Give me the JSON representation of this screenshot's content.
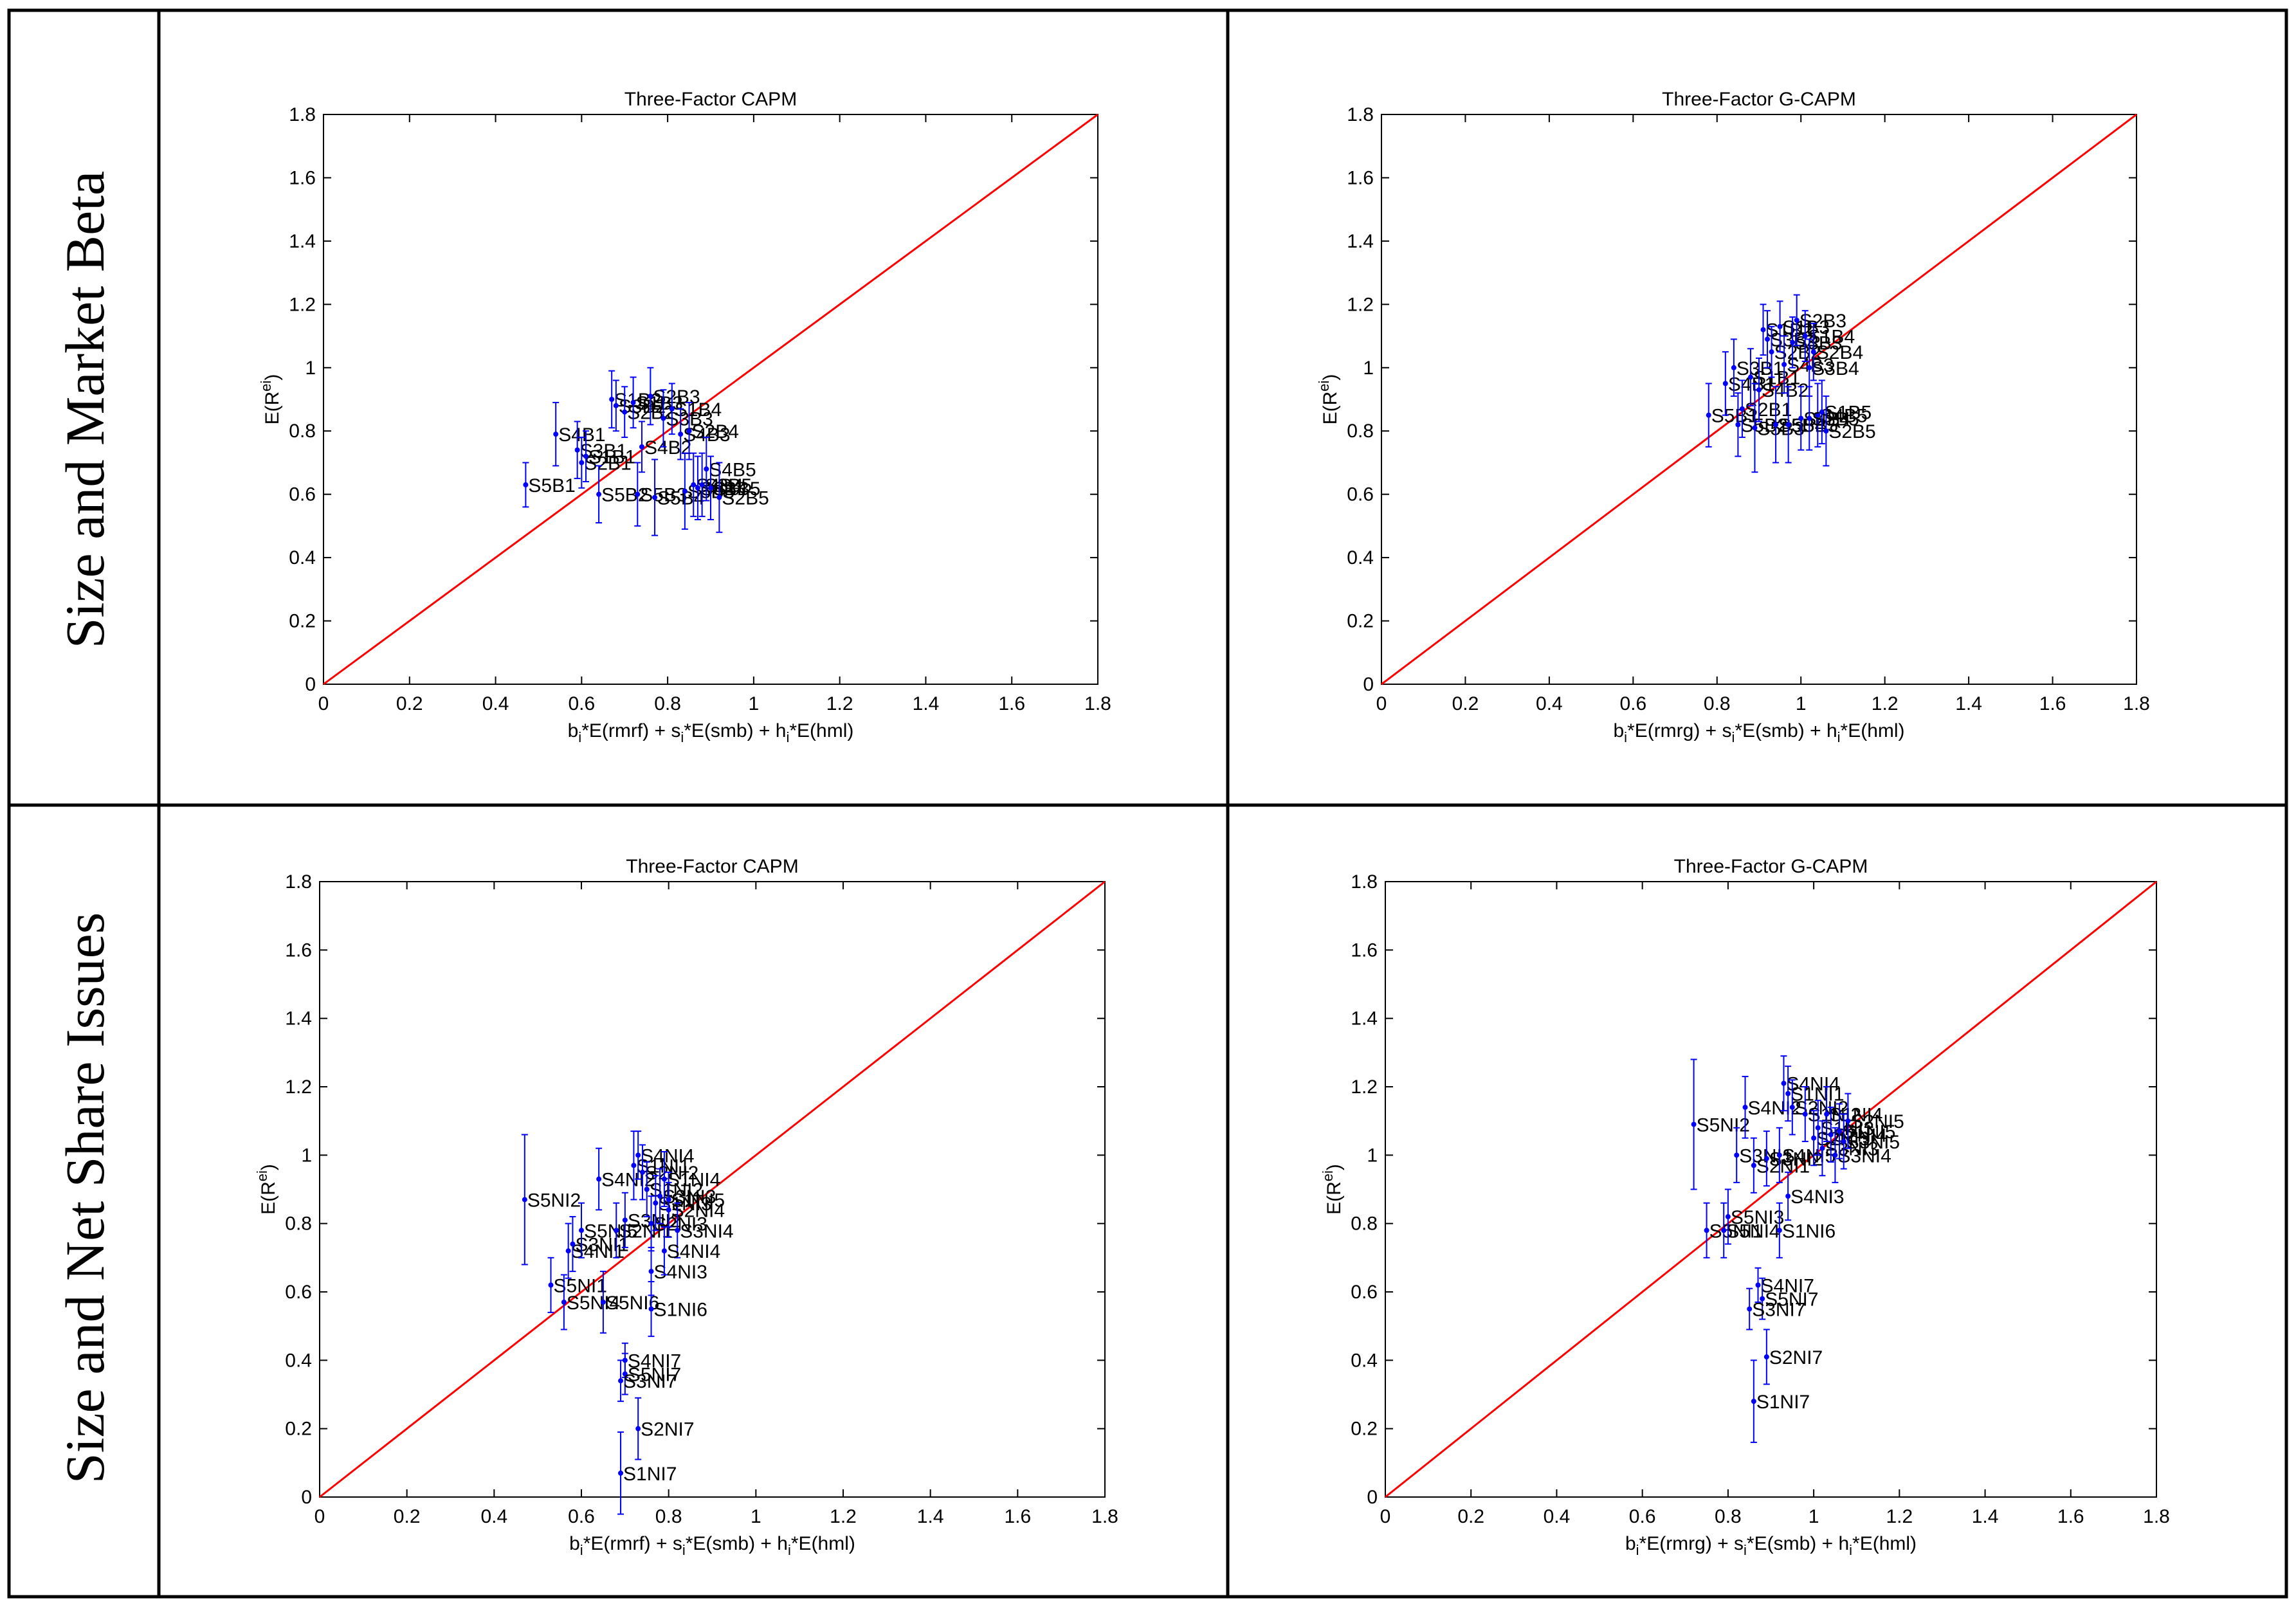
{
  "rows": [
    {
      "label": "Size and Market Beta"
    },
    {
      "label": "Size and Net Share Issues"
    }
  ],
  "colors": {
    "diagonal": "#ff0000",
    "points": "#0000ff",
    "axis": "#000000",
    "grid_border": "#000000"
  },
  "chart_data": [
    {
      "type": "scatter",
      "title": "Three-Factor CAPM",
      "xlabel": "b_i*E(rmrf) + s_i*E(smb) + h_i*E(hml)",
      "ylabel": "E(R^ei)",
      "xlim": [
        0,
        1.8
      ],
      "ylim": [
        0,
        1.8
      ],
      "xticks": [
        "0",
        "0.2",
        "0.4",
        "0.6",
        "0.8",
        "1",
        "1.2",
        "1.4",
        "1.6",
        "1.8"
      ],
      "yticks": [
        "0",
        "0.2",
        "0.4",
        "0.6",
        "0.8",
        "1",
        "1.2",
        "1.4",
        "1.6",
        "1.8"
      ],
      "diagonal": true,
      "points": [
        {
          "label": "S5B1",
          "x": 0.47,
          "y": 0.63,
          "err": 0.07
        },
        {
          "label": "S4B1",
          "x": 0.54,
          "y": 0.79,
          "err": 0.1
        },
        {
          "label": "S3B1",
          "x": 0.59,
          "y": 0.74,
          "err": 0.09
        },
        {
          "label": "S2B1",
          "x": 0.6,
          "y": 0.7,
          "err": 0.08
        },
        {
          "label": "S1B1",
          "x": 0.61,
          "y": 0.72,
          "err": 0.08
        },
        {
          "label": "S5B2",
          "x": 0.64,
          "y": 0.6,
          "err": 0.09
        },
        {
          "label": "S1B2",
          "x": 0.67,
          "y": 0.9,
          "err": 0.09
        },
        {
          "label": "S3B2",
          "x": 0.68,
          "y": 0.88,
          "err": 0.08
        },
        {
          "label": "S2B2",
          "x": 0.7,
          "y": 0.86,
          "err": 0.08
        },
        {
          "label": "S1B3",
          "x": 0.72,
          "y": 0.89,
          "err": 0.08
        },
        {
          "label": "S5B3",
          "x": 0.73,
          "y": 0.6,
          "err": 0.1
        },
        {
          "label": "S4B2",
          "x": 0.74,
          "y": 0.75,
          "err": 0.08
        },
        {
          "label": "S2B3",
          "x": 0.76,
          "y": 0.91,
          "err": 0.09
        },
        {
          "label": "S5B4",
          "x": 0.77,
          "y": 0.59,
          "err": 0.12
        },
        {
          "label": "S3B3",
          "x": 0.79,
          "y": 0.84,
          "err": 0.09
        },
        {
          "label": "S1B4",
          "x": 0.81,
          "y": 0.87,
          "err": 0.08
        },
        {
          "label": "S4B3",
          "x": 0.83,
          "y": 0.79,
          "err": 0.08
        },
        {
          "label": "S5B5",
          "x": 0.84,
          "y": 0.61,
          "err": 0.12
        },
        {
          "label": "S2B4",
          "x": 0.85,
          "y": 0.8,
          "err": 0.09
        },
        {
          "label": "S4B4",
          "x": 0.86,
          "y": 0.63,
          "err": 0.1
        },
        {
          "label": "S3B4",
          "x": 0.87,
          "y": 0.62,
          "err": 0.1
        },
        {
          "label": "S3B5",
          "x": 0.88,
          "y": 0.63,
          "err": 0.1
        },
        {
          "label": "S4B5",
          "x": 0.89,
          "y": 0.68,
          "err": 0.1
        },
        {
          "label": "S1B5",
          "x": 0.9,
          "y": 0.62,
          "err": 0.1
        },
        {
          "label": "S2B5",
          "x": 0.92,
          "y": 0.59,
          "err": 0.11
        }
      ]
    },
    {
      "type": "scatter",
      "title": "Three-Factor G-CAPM",
      "xlabel": "b_i*E(rmrg) + s_i*E(smb) + h_i*E(hml)",
      "ylabel": "E(R^ei)",
      "xlim": [
        0,
        1.8
      ],
      "ylim": [
        0,
        1.8
      ],
      "xticks": [
        "0",
        "0.2",
        "0.4",
        "0.6",
        "0.8",
        "1",
        "1.2",
        "1.4",
        "1.6",
        "1.8"
      ],
      "yticks": [
        "0",
        "0.2",
        "0.4",
        "0.6",
        "0.8",
        "1",
        "1.2",
        "1.4",
        "1.6",
        "1.8"
      ],
      "diagonal": true,
      "points": [
        {
          "label": "S5B1",
          "x": 0.78,
          "y": 0.85,
          "err": 0.1
        },
        {
          "label": "S4B1",
          "x": 0.82,
          "y": 0.95,
          "err": 0.1
        },
        {
          "label": "S3B1",
          "x": 0.84,
          "y": 1.0,
          "err": 0.09
        },
        {
          "label": "S5B2",
          "x": 0.85,
          "y": 0.82,
          "err": 0.1
        },
        {
          "label": "S2B1",
          "x": 0.86,
          "y": 0.87,
          "err": 0.09
        },
        {
          "label": "S1B1",
          "x": 0.88,
          "y": 0.97,
          "err": 0.09
        },
        {
          "label": "S5B3",
          "x": 0.89,
          "y": 0.81,
          "err": 0.14
        },
        {
          "label": "S4B2",
          "x": 0.9,
          "y": 0.93,
          "err": 0.1
        },
        {
          "label": "S1B2",
          "x": 0.91,
          "y": 1.12,
          "err": 0.08
        },
        {
          "label": "S3B2",
          "x": 0.92,
          "y": 1.09,
          "err": 0.09
        },
        {
          "label": "S2B2",
          "x": 0.93,
          "y": 1.05,
          "err": 0.08
        },
        {
          "label": "S5B4",
          "x": 0.94,
          "y": 0.82,
          "err": 0.12
        },
        {
          "label": "S1B3",
          "x": 0.95,
          "y": 1.13,
          "err": 0.08
        },
        {
          "label": "S4B3",
          "x": 0.96,
          "y": 1.01,
          "err": 0.09
        },
        {
          "label": "S5B5",
          "x": 0.97,
          "y": 0.82,
          "err": 0.12
        },
        {
          "label": "S3B3",
          "x": 0.98,
          "y": 1.08,
          "err": 0.08
        },
        {
          "label": "S2B3",
          "x": 0.99,
          "y": 1.15,
          "err": 0.08
        },
        {
          "label": "S4B4",
          "x": 1.0,
          "y": 0.84,
          "err": 0.1
        },
        {
          "label": "S1B4",
          "x": 1.01,
          "y": 1.1,
          "err": 0.08
        },
        {
          "label": "S3B4",
          "x": 1.02,
          "y": 1.0,
          "err": 0.09
        },
        {
          "label": "S2B4",
          "x": 1.03,
          "y": 1.05,
          "err": 0.09
        },
        {
          "label": "S4B5",
          "x": 1.04,
          "y": 0.85,
          "err": 0.1
        },
        {
          "label": "S3B5",
          "x": 1.02,
          "y": 0.84,
          "err": 0.1
        },
        {
          "label": "S1B5",
          "x": 1.05,
          "y": 0.86,
          "err": 0.1
        },
        {
          "label": "S2B5",
          "x": 1.06,
          "y": 0.8,
          "err": 0.11
        }
      ]
    },
    {
      "type": "scatter",
      "title": "Three-Factor CAPM",
      "xlabel": "b_i*E(rmrf) + s_i*E(smb) + h_i*E(hml)",
      "ylabel": "E(R^ei)",
      "xlim": [
        0,
        1.8
      ],
      "ylim": [
        0,
        1.8
      ],
      "xticks": [
        "0",
        "0.2",
        "0.4",
        "0.6",
        "0.8",
        "1",
        "1.2",
        "1.4",
        "1.6",
        "1.8"
      ],
      "yticks": [
        "0",
        "0.2",
        "0.4",
        "0.6",
        "0.8",
        "1",
        "1.2",
        "1.4",
        "1.6",
        "1.8"
      ],
      "diagonal": true,
      "points": [
        {
          "label": "S5NI2",
          "x": 0.47,
          "y": 0.87,
          "err": 0.19
        },
        {
          "label": "S5NI1",
          "x": 0.53,
          "y": 0.62,
          "err": 0.08
        },
        {
          "label": "S5NI4",
          "x": 0.56,
          "y": 0.57,
          "err": 0.08
        },
        {
          "label": "S4NI1",
          "x": 0.57,
          "y": 0.72,
          "err": 0.08
        },
        {
          "label": "S3NI1",
          "x": 0.58,
          "y": 0.74,
          "err": 0.08
        },
        {
          "label": "S5NI5",
          "x": 0.6,
          "y": 0.78,
          "err": 0.08
        },
        {
          "label": "S4NI2",
          "x": 0.64,
          "y": 0.93,
          "err": 0.09
        },
        {
          "label": "S5NI6",
          "x": 0.65,
          "y": 0.57,
          "err": 0.09
        },
        {
          "label": "S2NI1",
          "x": 0.68,
          "y": 0.78,
          "err": 0.08
        },
        {
          "label": "S3NI2",
          "x": 0.7,
          "y": 0.81,
          "err": 0.08
        },
        {
          "label": "S4NI7",
          "x": 0.7,
          "y": 0.4,
          "err": 0.05
        },
        {
          "label": "S5NI7",
          "x": 0.7,
          "y": 0.36,
          "err": 0.06
        },
        {
          "label": "S3NI7",
          "x": 0.69,
          "y": 0.34,
          "err": 0.06
        },
        {
          "label": "S1NI7",
          "x": 0.69,
          "y": 0.07,
          "err": 0.12
        },
        {
          "label": "S2NI7",
          "x": 0.73,
          "y": 0.2,
          "err": 0.09
        },
        {
          "label": "S1NI1",
          "x": 0.72,
          "y": 0.97,
          "err": 0.1
        },
        {
          "label": "S4NI4",
          "x": 0.73,
          "y": 1.0,
          "err": 0.07
        },
        {
          "label": "S2NI2",
          "x": 0.74,
          "y": 0.95,
          "err": 0.08
        },
        {
          "label": "S1NI2",
          "x": 0.75,
          "y": 0.9,
          "err": 0.08
        },
        {
          "label": "S2NI3",
          "x": 0.76,
          "y": 0.8,
          "err": 0.08
        },
        {
          "label": "S1NI3",
          "x": 0.77,
          "y": 0.86,
          "err": 0.08
        },
        {
          "label": "S3NI3",
          "x": 0.78,
          "y": 0.88,
          "err": 0.08
        },
        {
          "label": "S1NI4",
          "x": 0.79,
          "y": 0.93,
          "err": 0.08
        },
        {
          "label": "S2NI4",
          "x": 0.8,
          "y": 0.84,
          "err": 0.08
        },
        {
          "label": "S3NI4",
          "x": 0.82,
          "y": 0.78,
          "err": 0.08
        },
        {
          "label": "S4NI3",
          "x": 0.76,
          "y": 0.66,
          "err": 0.07
        },
        {
          "label": "S4NI4",
          "x": 0.79,
          "y": 0.72,
          "err": 0.07
        },
        {
          "label": "S1NI5",
          "x": 0.8,
          "y": 0.87,
          "err": 0.08
        },
        {
          "label": "S1NI6",
          "x": 0.76,
          "y": 0.55,
          "err": 0.08
        }
      ]
    },
    {
      "type": "scatter",
      "title": "Three-Factor G-CAPM",
      "xlabel": "b_i*E(rmrg) + s_i*E(smb) + h_i*E(hml)",
      "ylabel": "E(R^ei)",
      "xlim": [
        0,
        1.8
      ],
      "ylim": [
        0,
        1.8
      ],
      "xticks": [
        "0",
        "0.2",
        "0.4",
        "0.6",
        "0.8",
        "1",
        "1.2",
        "1.4",
        "1.6",
        "1.8"
      ],
      "yticks": [
        "0",
        "0.2",
        "0.4",
        "0.6",
        "0.8",
        "1",
        "1.2",
        "1.4",
        "1.6",
        "1.8"
      ],
      "diagonal": true,
      "points": [
        {
          "label": "S5NI2",
          "x": 0.72,
          "y": 1.09,
          "err": 0.19
        },
        {
          "label": "S5NI1",
          "x": 0.75,
          "y": 0.78,
          "err": 0.08
        },
        {
          "label": "S5NI4",
          "x": 0.79,
          "y": 0.78,
          "err": 0.08
        },
        {
          "label": "S5NI3",
          "x": 0.8,
          "y": 0.82,
          "err": 0.08
        },
        {
          "label": "S3NI1",
          "x": 0.82,
          "y": 1.0,
          "err": 0.08
        },
        {
          "label": "S4NI2",
          "x": 0.84,
          "y": 1.14,
          "err": 0.09
        },
        {
          "label": "S2NI1",
          "x": 0.86,
          "y": 0.97,
          "err": 0.08
        },
        {
          "label": "S4NI7",
          "x": 0.87,
          "y": 0.62,
          "err": 0.05
        },
        {
          "label": "S5NI7",
          "x": 0.88,
          "y": 0.58,
          "err": 0.06
        },
        {
          "label": "S3NI7",
          "x": 0.85,
          "y": 0.55,
          "err": 0.06
        },
        {
          "label": "S2NI7",
          "x": 0.89,
          "y": 0.41,
          "err": 0.08
        },
        {
          "label": "S1NI7",
          "x": 0.86,
          "y": 0.28,
          "err": 0.12
        },
        {
          "label": "S3NI2",
          "x": 0.89,
          "y": 0.99,
          "err": 0.08
        },
        {
          "label": "S4NI4",
          "x": 0.93,
          "y": 1.21,
          "err": 0.08
        },
        {
          "label": "S1NI1",
          "x": 0.94,
          "y": 1.18,
          "err": 0.08
        },
        {
          "label": "S2NI2",
          "x": 0.95,
          "y": 1.14,
          "err": 0.08
        },
        {
          "label": "S4NI5",
          "x": 0.92,
          "y": 1.0,
          "err": 0.08
        },
        {
          "label": "S4NI3",
          "x": 0.94,
          "y": 0.88,
          "err": 0.07
        },
        {
          "label": "S1NI6",
          "x": 0.92,
          "y": 0.78,
          "err": 0.08
        },
        {
          "label": "S1NI2",
          "x": 0.98,
          "y": 1.12,
          "err": 0.08
        },
        {
          "label": "S2NI3",
          "x": 1.0,
          "y": 1.05,
          "err": 0.08
        },
        {
          "label": "S1NI3",
          "x": 1.01,
          "y": 1.08,
          "err": 0.08
        },
        {
          "label": "S3NI3",
          "x": 1.02,
          "y": 1.02,
          "err": 0.08
        },
        {
          "label": "S1NI4",
          "x": 1.03,
          "y": 1.12,
          "err": 0.08
        },
        {
          "label": "S2NI4",
          "x": 1.04,
          "y": 1.06,
          "err": 0.08
        },
        {
          "label": "S3NI4",
          "x": 1.05,
          "y": 1.0,
          "err": 0.08
        },
        {
          "label": "S1NI5",
          "x": 1.06,
          "y": 1.07,
          "err": 0.08
        },
        {
          "label": "S3NI5",
          "x": 1.07,
          "y": 1.04,
          "err": 0.08
        },
        {
          "label": "S2NI5",
          "x": 1.08,
          "y": 1.1,
          "err": 0.08
        }
      ]
    }
  ]
}
